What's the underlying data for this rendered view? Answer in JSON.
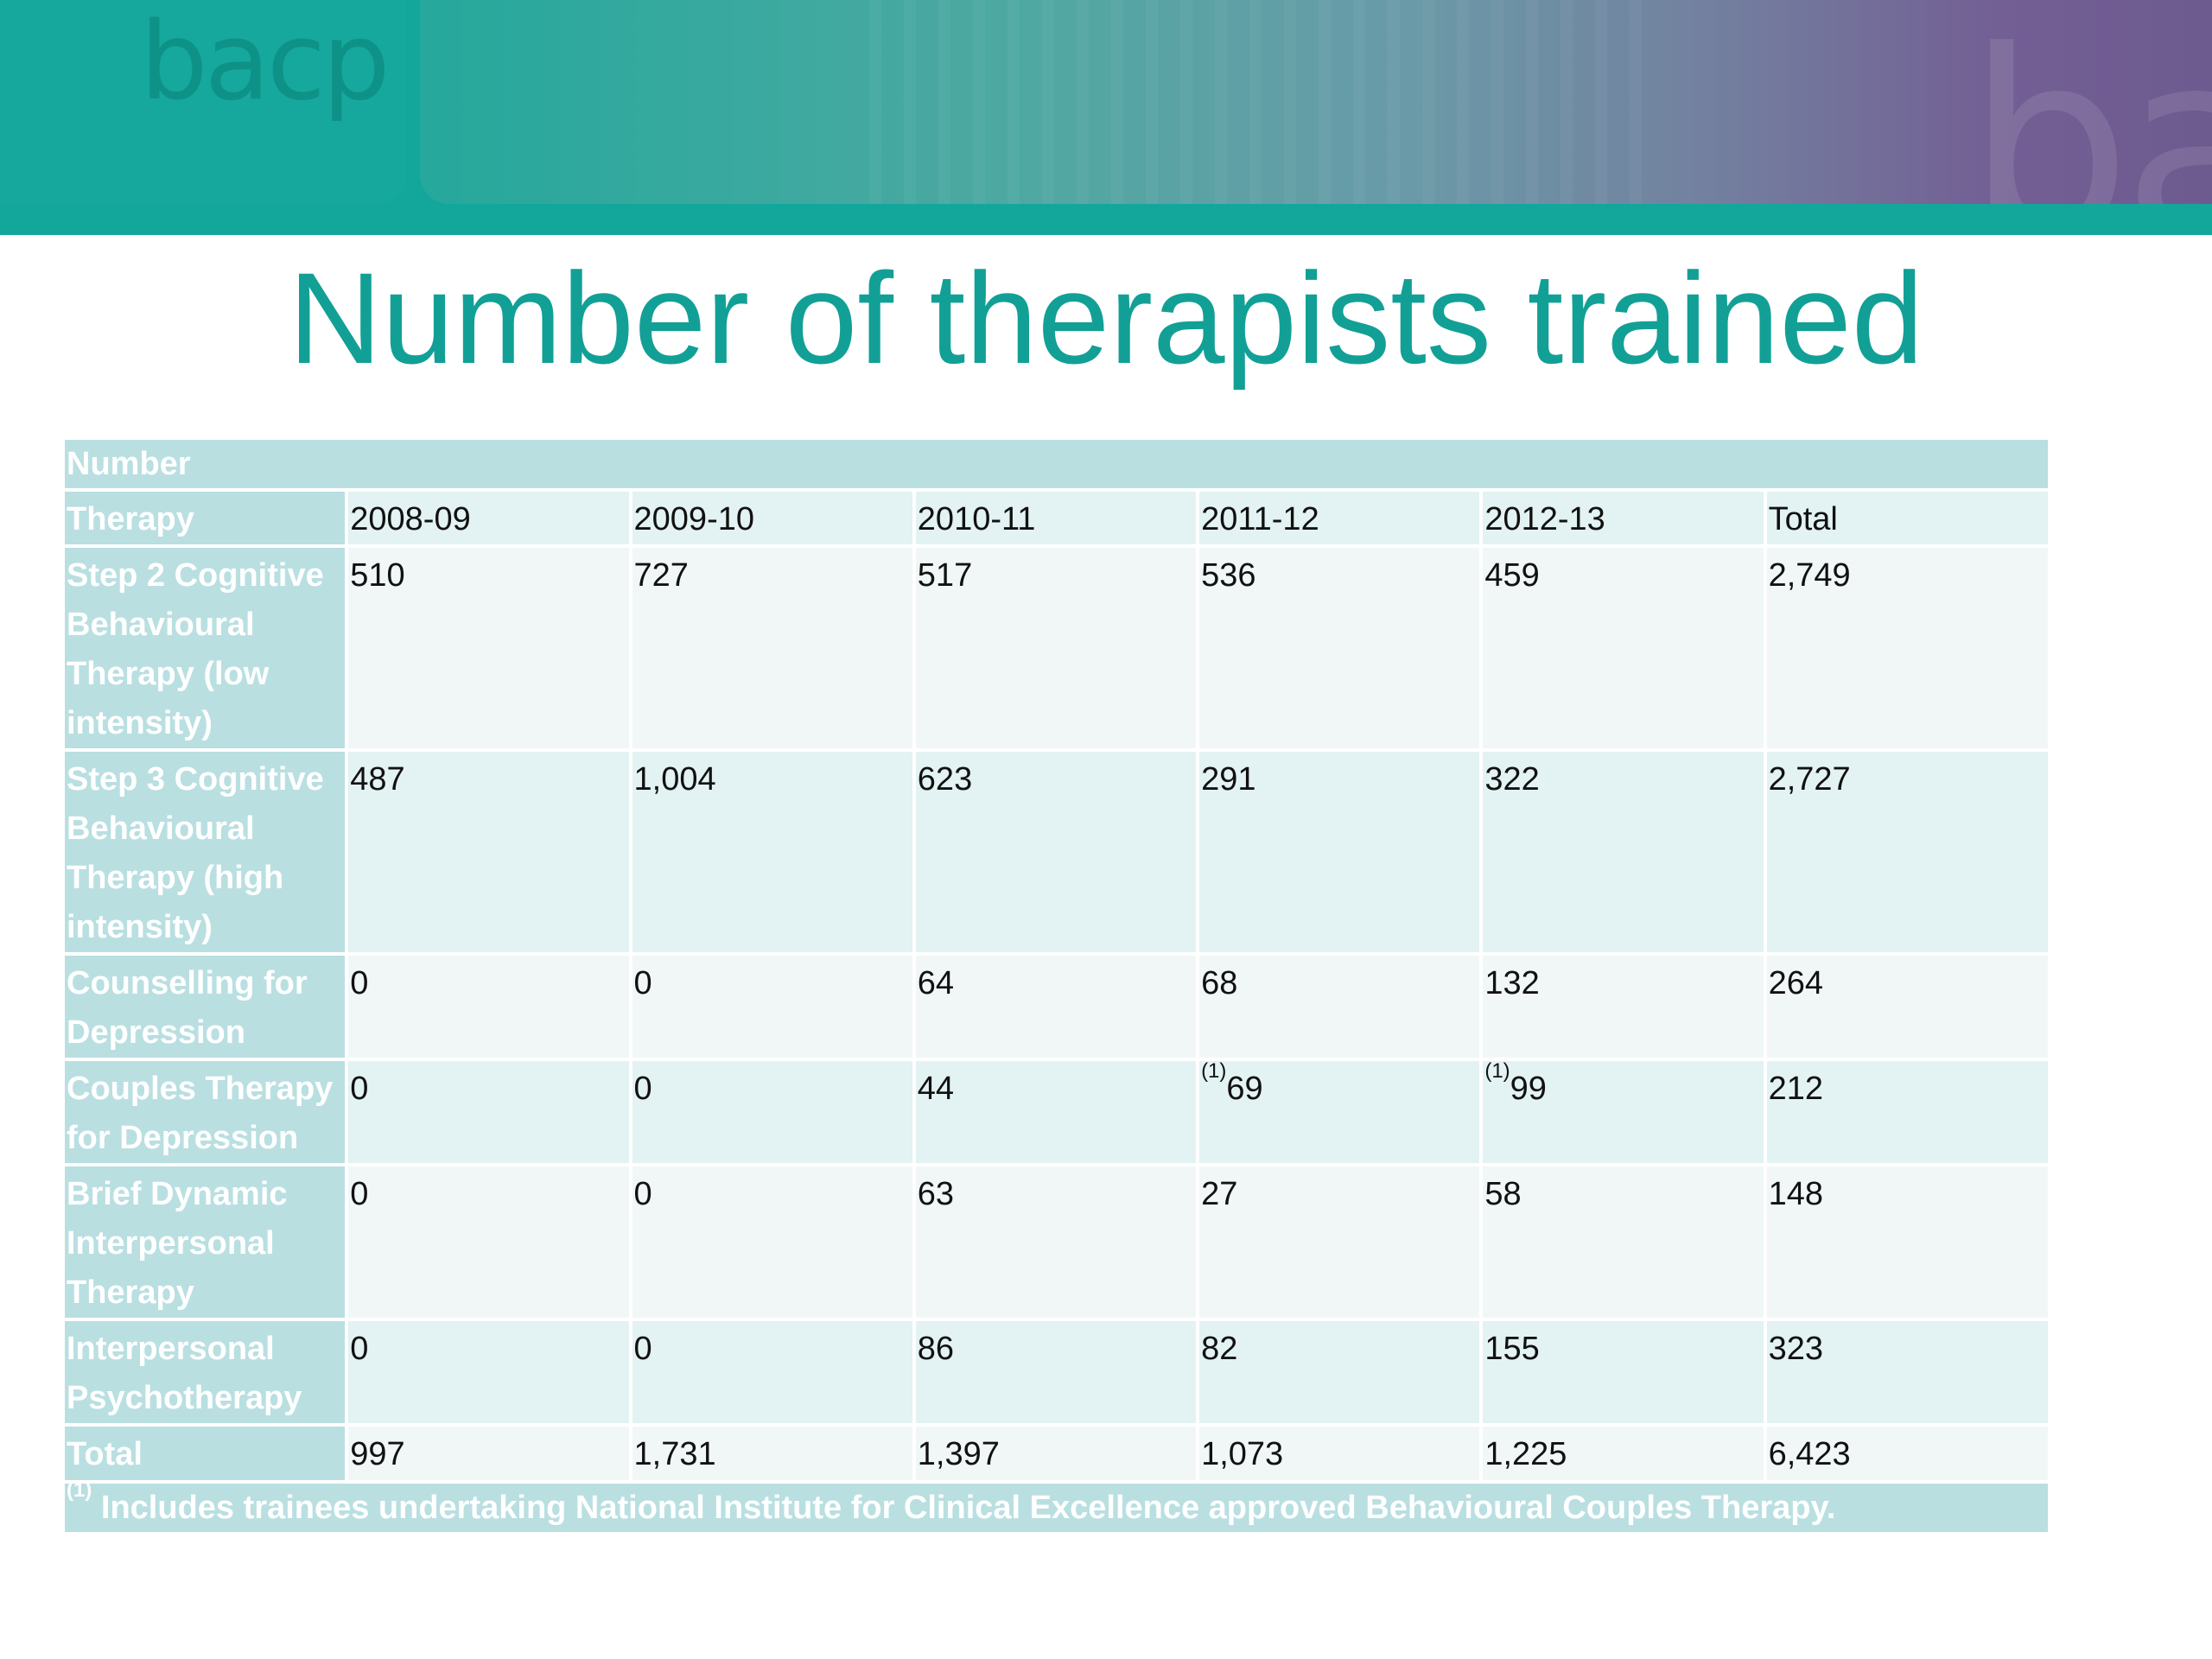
{
  "header": {
    "logo_text": "bacp",
    "watermark_text": "bacp"
  },
  "title": "Number of therapists trained",
  "table": {
    "caption": "Number",
    "columns": [
      "Therapy",
      "2008-09",
      "2009-10",
      "2010-11",
      "2011-12",
      "2012-13",
      "Total"
    ],
    "rows": [
      {
        "therapy": "Step 2 Cognitive Behavioural Therapy (low intensity)",
        "values": [
          {
            "mark": "",
            "value": "510"
          },
          {
            "mark": "",
            "value": "727"
          },
          {
            "mark": "",
            "value": "517"
          },
          {
            "mark": "",
            "value": "536"
          },
          {
            "mark": "",
            "value": "459"
          },
          {
            "mark": "",
            "value": "2,749"
          }
        ]
      },
      {
        "therapy": "Step 3 Cognitive Behavioural Therapy (high intensity)",
        "values": [
          {
            "mark": "",
            "value": "487"
          },
          {
            "mark": "",
            "value": "1,004"
          },
          {
            "mark": "",
            "value": "623"
          },
          {
            "mark": "",
            "value": "291"
          },
          {
            "mark": "",
            "value": "322"
          },
          {
            "mark": "",
            "value": "2,727"
          }
        ]
      },
      {
        "therapy": "Counselling for Depression",
        "values": [
          {
            "mark": "",
            "value": "0"
          },
          {
            "mark": "",
            "value": "0"
          },
          {
            "mark": "",
            "value": "64"
          },
          {
            "mark": "",
            "value": "68"
          },
          {
            "mark": "",
            "value": "132"
          },
          {
            "mark": "",
            "value": "264"
          }
        ]
      },
      {
        "therapy": "Couples Therapy for Depression",
        "values": [
          {
            "mark": "",
            "value": "0"
          },
          {
            "mark": "",
            "value": "0"
          },
          {
            "mark": "",
            "value": "44"
          },
          {
            "mark": "(1)",
            "value": "69"
          },
          {
            "mark": "(1)",
            "value": "99"
          },
          {
            "mark": "",
            "value": "212"
          }
        ]
      },
      {
        "therapy": "Brief Dynamic Interpersonal Therapy",
        "values": [
          {
            "mark": "",
            "value": "0"
          },
          {
            "mark": "",
            "value": "0"
          },
          {
            "mark": "",
            "value": "63"
          },
          {
            "mark": "",
            "value": "27"
          },
          {
            "mark": "",
            "value": "58"
          },
          {
            "mark": "",
            "value": "148"
          }
        ]
      },
      {
        "therapy": "Interpersonal Psychotherapy",
        "values": [
          {
            "mark": "",
            "value": "0"
          },
          {
            "mark": "",
            "value": "0"
          },
          {
            "mark": "",
            "value": "86"
          },
          {
            "mark": "",
            "value": "82"
          },
          {
            "mark": "",
            "value": "155"
          },
          {
            "mark": "",
            "value": "323"
          }
        ]
      },
      {
        "therapy": "Total",
        "values": [
          {
            "mark": "",
            "value": "997"
          },
          {
            "mark": "",
            "value": "1,731"
          },
          {
            "mark": "",
            "value": "1,397"
          },
          {
            "mark": "",
            "value": "1,073"
          },
          {
            "mark": "",
            "value": "1,225"
          },
          {
            "mark": "",
            "value": "6,423"
          }
        ]
      }
    ],
    "footnote": {
      "mark": "(1)",
      "text": " Includes trainees undertaking National Institute for Clinical Excellence approved Behavioural Couples Therapy."
    }
  },
  "colors": {
    "brand_teal": "#12a096",
    "table_header_fill": "#b9dfe1",
    "row_light": "#f1f7f7",
    "row_dark": "#e3f2f2",
    "gradient_end_purple": "#6d5a8f"
  }
}
